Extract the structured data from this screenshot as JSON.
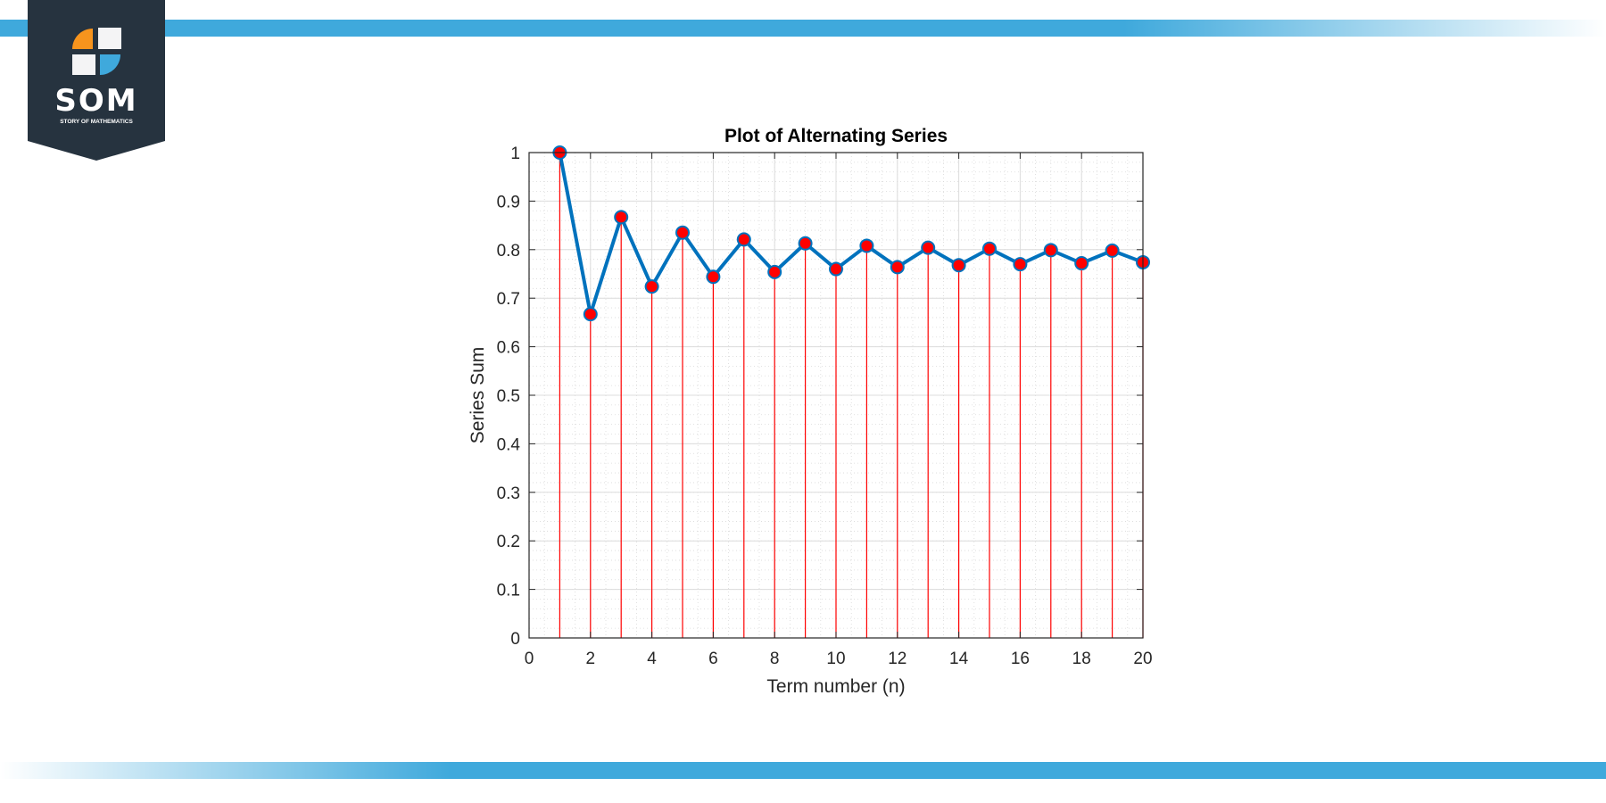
{
  "brand": {
    "name": "SOM",
    "tagline": "STORY OF MATHEMATICS",
    "colors": {
      "badge": "#26333f",
      "orange": "#f7941d",
      "blue": "#3fa9dc",
      "bar": "#3fa9dc"
    }
  },
  "chart_data": {
    "type": "line",
    "title": "Plot of Alternating Series",
    "xlabel": "Term number (n)",
    "ylabel": "Series Sum",
    "xlim": [
      0,
      20
    ],
    "ylim": [
      0,
      1
    ],
    "xticks": [
      0,
      2,
      4,
      6,
      8,
      10,
      12,
      14,
      16,
      18,
      20
    ],
    "yticks": [
      0,
      0.1,
      0.2,
      0.3,
      0.4,
      0.5,
      0.6,
      0.7,
      0.8,
      0.9,
      1
    ],
    "ytick_labels": [
      "0",
      "0.1",
      "0.2",
      "0.3",
      "0.4",
      "0.5",
      "0.6",
      "0.7",
      "0.8",
      "0.9",
      "1"
    ],
    "grid": true,
    "minor_grid": true,
    "stems": true,
    "colors": {
      "line": "#0072bd",
      "marker_fill": "#ff0000",
      "stem": "#ff0000"
    },
    "series": [
      {
        "x": [
          1,
          2,
          3,
          4,
          5,
          6,
          7,
          8,
          9,
          10,
          11,
          12,
          13,
          14,
          15,
          16,
          17,
          18,
          19,
          20
        ],
        "values": [
          1.0,
          0.667,
          0.867,
          0.724,
          0.835,
          0.744,
          0.821,
          0.754,
          0.813,
          0.76,
          0.808,
          0.764,
          0.804,
          0.768,
          0.802,
          0.77,
          0.799,
          0.772,
          0.798,
          0.774
        ]
      }
    ]
  }
}
